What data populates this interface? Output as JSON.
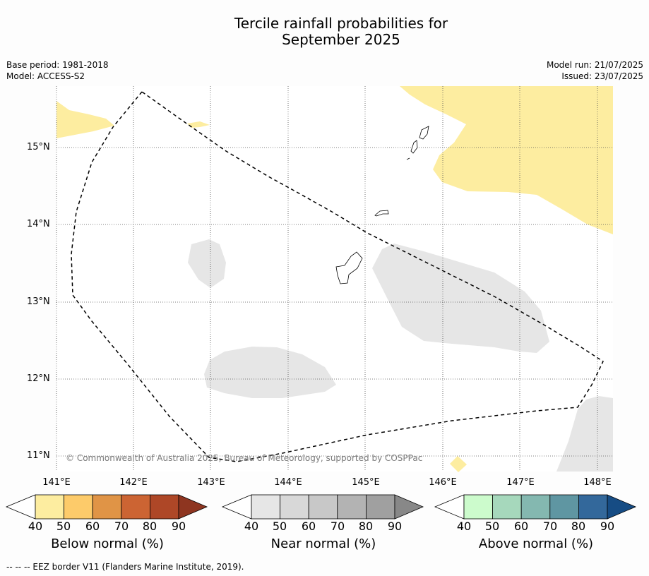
{
  "title_line1": "Tercile rainfall probabilities for",
  "title_line2": "September 2025",
  "meta_left": {
    "base_period": "Base period: 1981-2018",
    "model": "Model: ACCESS-S2"
  },
  "meta_right": {
    "model_run": "Model run: 21/07/2025",
    "issued": "Issued: 23/07/2025"
  },
  "latitude_labels": [
    "15°N",
    "14°N",
    "13°N",
    "12°N",
    "11°N"
  ],
  "longitude_labels": [
    "141°E",
    "142°E",
    "143°E",
    "144°E",
    "145°E",
    "146°E",
    "147°E",
    "148°E"
  ],
  "copyright": "© Commonwealth of Australia 2025, Bureau of Meteorology, supported by COSPPac",
  "legends": [
    {
      "title": "Below normal (%)",
      "ticks": [
        "40",
        "50",
        "60",
        "70",
        "80",
        "90"
      ],
      "colors": [
        "#ffffff",
        "#fdeda0",
        "#fdcb6a",
        "#e09446",
        "#cc6433",
        "#ae4727",
        "#8e3520"
      ]
    },
    {
      "title": "Near normal (%)",
      "ticks": [
        "40",
        "50",
        "60",
        "70",
        "80",
        "90"
      ],
      "colors": [
        "#ffffff",
        "#e6e6e6",
        "#d8d8d8",
        "#c8c8c8",
        "#b3b3b3",
        "#a0a0a0",
        "#888888"
      ]
    },
    {
      "title": "Above normal (%)",
      "ticks": [
        "40",
        "50",
        "60",
        "70",
        "80",
        "90"
      ],
      "colors": [
        "#ffffff",
        "#ccfbcc",
        "#a6d8bc",
        "#84b8b0",
        "#5f96a2",
        "#33689b",
        "#164c84"
      ]
    }
  ],
  "footer": "--  --  -- EEZ border V11 (Flanders Marine Institute, 2019).",
  "colors": {
    "below_normal_40_50": "#fdeda0",
    "near_normal_40_50": "#e6e6e6",
    "eez_border": "#000000",
    "gridline": "#555555"
  }
}
